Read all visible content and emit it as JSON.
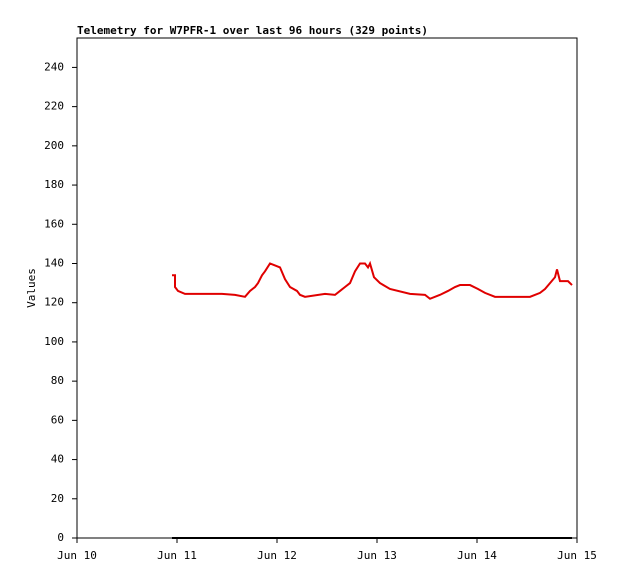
{
  "chart_data": {
    "type": "line",
    "title": "Telemetry for W7PFR-1 over last 96 hours (329 points)",
    "y_label": "Values",
    "x": [
      0.95,
      0.98,
      0.98,
      1.01,
      1.08,
      1.45,
      1.58,
      1.68,
      1.73,
      1.78,
      1.81,
      1.85,
      1.88,
      1.93,
      1.98,
      2.03,
      2.08,
      2.13,
      2.2,
      2.23,
      2.28,
      2.48,
      2.58,
      2.63,
      2.68,
      2.73,
      2.78,
      2.83,
      2.88,
      2.91,
      2.93,
      2.97,
      3.03,
      3.13,
      3.33,
      3.48,
      3.53,
      3.63,
      3.71,
      3.78,
      3.83,
      3.93,
      4.01,
      4.08,
      4.18,
      4.53,
      4.63,
      4.68,
      4.73,
      4.78,
      4.8,
      4.83,
      4.91,
      4.95
    ],
    "series": [
      {
        "name": "Values",
        "color": "#e00000",
        "values": [
          134,
          134,
          128,
          126,
          124.5,
          124.5,
          124,
          123,
          126,
          128,
          130,
          134,
          136,
          140,
          139,
          138,
          132,
          128,
          126,
          124,
          123,
          124.5,
          124,
          126,
          128,
          130,
          136,
          140,
          140,
          138,
          140,
          133,
          130,
          127,
          124.5,
          124,
          122,
          124,
          126,
          128,
          129,
          129,
          127,
          125,
          123,
          123,
          125,
          127,
          130,
          133,
          137,
          131,
          131,
          129
        ]
      },
      {
        "name": "Baseline",
        "color": "#000000",
        "values": [
          0,
          0,
          0,
          0,
          0,
          0,
          0,
          0,
          0,
          0,
          0,
          0,
          0,
          0,
          0,
          0,
          0,
          0,
          0,
          0,
          0,
          0,
          0,
          0,
          0,
          0,
          0,
          0,
          0,
          0,
          0,
          0,
          0,
          0,
          0,
          0,
          0,
          0,
          0,
          0,
          0,
          0,
          0,
          0,
          0,
          0,
          0,
          0,
          0,
          0,
          0,
          0,
          0,
          0
        ]
      }
    ],
    "xlim": [
      0,
      5
    ],
    "xticks": [
      {
        "value": 0,
        "label": "Jun 10"
      },
      {
        "value": 1,
        "label": "Jun 11"
      },
      {
        "value": 2,
        "label": "Jun 12"
      },
      {
        "value": 3,
        "label": "Jun 13"
      },
      {
        "value": 4,
        "label": "Jun 14"
      },
      {
        "value": 5,
        "label": "Jun 15"
      }
    ],
    "ylim": [
      0,
      255
    ],
    "yticks": [
      0,
      20,
      40,
      60,
      80,
      100,
      120,
      140,
      160,
      180,
      200,
      220,
      240
    ]
  }
}
